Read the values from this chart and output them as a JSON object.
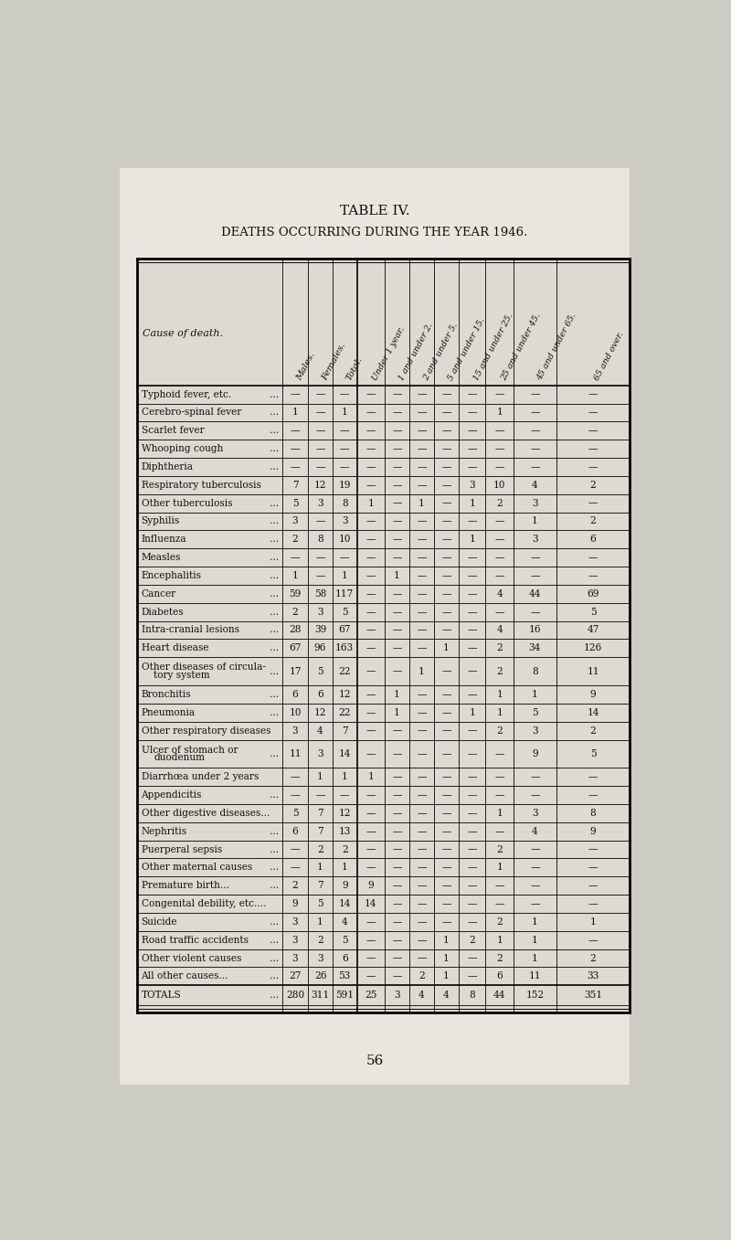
{
  "title1": "TABLE IV.",
  "title2": "DEATHS OCCURRING DURING THE YEAR 1946.",
  "col_headers": [
    "Cause of death.",
    "Males.",
    "Females.",
    "Total.",
    "Under 1 year.",
    "1 and under 2.",
    "2 and under 5.",
    "5 and under 15.",
    "15 and under 25.",
    "25 and under 45.",
    "45 and under 65.",
    "65 and over."
  ],
  "rows": [
    [
      "Typhoid fever, etc.",
      "...",
      "—",
      "—",
      "—",
      "—",
      "—",
      "—",
      "—",
      "—",
      "—",
      "—",
      "—"
    ],
    [
      "Cerebro-spinal fever",
      "...",
      "1",
      "—",
      "1",
      "—",
      "—",
      "—",
      "—",
      "—",
      "1",
      "—",
      "—"
    ],
    [
      "Scarlet fever",
      "...",
      "—",
      "—",
      "—",
      "—",
      "—",
      "—",
      "—",
      "—",
      "—",
      "—",
      "—"
    ],
    [
      "Whooping cough",
      "...",
      "—",
      "—",
      "—",
      "—",
      "—",
      "—",
      "—",
      "—",
      "—",
      "—",
      "—"
    ],
    [
      "Diphtheria",
      "...",
      "—",
      "—",
      "—",
      "—",
      "—",
      "—",
      "—",
      "—",
      "—",
      "—",
      "—"
    ],
    [
      "Respiratory tuberculosis",
      "",
      "7",
      "12",
      "19",
      "—",
      "—",
      "—",
      "—",
      "3",
      "10",
      "4",
      "2"
    ],
    [
      "Other tuberculosis",
      "...",
      "5",
      "3",
      "8",
      "1",
      "—",
      "1",
      "—",
      "1",
      "2",
      "3",
      "—"
    ],
    [
      "Syphilis",
      "...",
      "3",
      "—",
      "3",
      "—",
      "—",
      "—",
      "—",
      "—",
      "—",
      "1",
      "2"
    ],
    [
      "Influenza",
      "...",
      "2",
      "8",
      "10",
      "—",
      "—",
      "—",
      "—",
      "1",
      "—",
      "3",
      "6"
    ],
    [
      "Measles",
      "...",
      "—",
      "—",
      "—",
      "—",
      "—",
      "—",
      "—",
      "—",
      "—",
      "—",
      "—"
    ],
    [
      "Encephalitis",
      "...",
      "1",
      "—",
      "1",
      "—",
      "1",
      "—",
      "—",
      "—",
      "—",
      "—",
      "—"
    ],
    [
      "Cancer",
      "...",
      "59",
      "58",
      "117",
      "—",
      "—",
      "—",
      "—",
      "—",
      "4",
      "44",
      "69"
    ],
    [
      "Diabetes",
      "...",
      "2",
      "3",
      "5",
      "—",
      "—",
      "—",
      "—",
      "—",
      "—",
      "—",
      "5"
    ],
    [
      "Intra-cranial lesions",
      "...",
      "28",
      "39",
      "67",
      "—",
      "—",
      "—",
      "—",
      "—",
      "4",
      "16",
      "47"
    ],
    [
      "Heart disease",
      "...",
      "67",
      "96",
      "163",
      "—",
      "—",
      "—",
      "1",
      "—",
      "2",
      "34",
      "126"
    ],
    [
      "Other diseases of circula-|tory system",
      "...",
      "17",
      "5",
      "22",
      "—",
      "—",
      "1",
      "—",
      "—",
      "2",
      "8",
      "11"
    ],
    [
      "Bronchitis",
      "...",
      "6",
      "6",
      "12",
      "—",
      "1",
      "—",
      "—",
      "—",
      "1",
      "1",
      "9"
    ],
    [
      "Pneumonia",
      "...",
      "10",
      "12",
      "22",
      "—",
      "1",
      "—",
      "—",
      "1",
      "1",
      "5",
      "14"
    ],
    [
      "Other respiratory diseases",
      "",
      "3",
      "4",
      "7",
      "—",
      "—",
      "—",
      "—",
      "—",
      "2",
      "3",
      "2"
    ],
    [
      "Ulcer of stomach or|duodenum",
      "...",
      "11",
      "3",
      "14",
      "—",
      "—",
      "—",
      "—",
      "—",
      "—",
      "9",
      "5"
    ],
    [
      "Diarrhœa under 2 years",
      "",
      "—",
      "1",
      "1",
      "1",
      "—",
      "—",
      "—",
      "—",
      "—",
      "—",
      "—"
    ],
    [
      "Appendicitis",
      "...",
      "—",
      "—",
      "—",
      "—",
      "—",
      "—",
      "—",
      "—",
      "—",
      "—",
      "—"
    ],
    [
      "Other digestive diseases...",
      "",
      "5",
      "7",
      "12",
      "—",
      "—",
      "—",
      "—",
      "—",
      "1",
      "3",
      "8"
    ],
    [
      "Nephritis",
      "...",
      "6",
      "7",
      "13",
      "—",
      "—",
      "—",
      "—",
      "—",
      "—",
      "4",
      "9"
    ],
    [
      "Puerperal sepsis",
      "...",
      "—",
      "2",
      "2",
      "—",
      "—",
      "—",
      "—",
      "—",
      "2",
      "—",
      "—"
    ],
    [
      "Other maternal causes",
      "...",
      "—",
      "1",
      "1",
      "—",
      "—",
      "—",
      "—",
      "—",
      "1",
      "—",
      "—"
    ],
    [
      "Premature birth...",
      "...",
      "2",
      "7",
      "9",
      "9",
      "—",
      "—",
      "—",
      "—",
      "—",
      "—",
      "—"
    ],
    [
      "Congenital debility, etc....",
      "",
      "9",
      "5",
      "14",
      "14",
      "—",
      "—",
      "—",
      "—",
      "—",
      "—",
      "—"
    ],
    [
      "Suicide",
      "...",
      "3",
      "1",
      "4",
      "—",
      "—",
      "—",
      "—",
      "—",
      "2",
      "1",
      "1"
    ],
    [
      "Road traffic accidents",
      "...",
      "3",
      "2",
      "5",
      "—",
      "—",
      "—",
      "1",
      "2",
      "1",
      "1",
      "—"
    ],
    [
      "Other violent causes",
      "...",
      "3",
      "3",
      "6",
      "—",
      "—",
      "—",
      "1",
      "—",
      "2",
      "1",
      "2"
    ],
    [
      "All other causes...",
      "...",
      "27",
      "26",
      "53",
      "—",
      "—",
      "2",
      "1",
      "—",
      "6",
      "11",
      "33"
    ]
  ],
  "totals_row": [
    "Totals",
    "...",
    "280",
    "311",
    "591",
    "25",
    "3",
    "4",
    "4",
    "8",
    "44",
    "152",
    "351"
  ],
  "page_number": "56",
  "bg_color": "#cccbc4",
  "table_bg": "#dedad2",
  "text_color": "#111111"
}
